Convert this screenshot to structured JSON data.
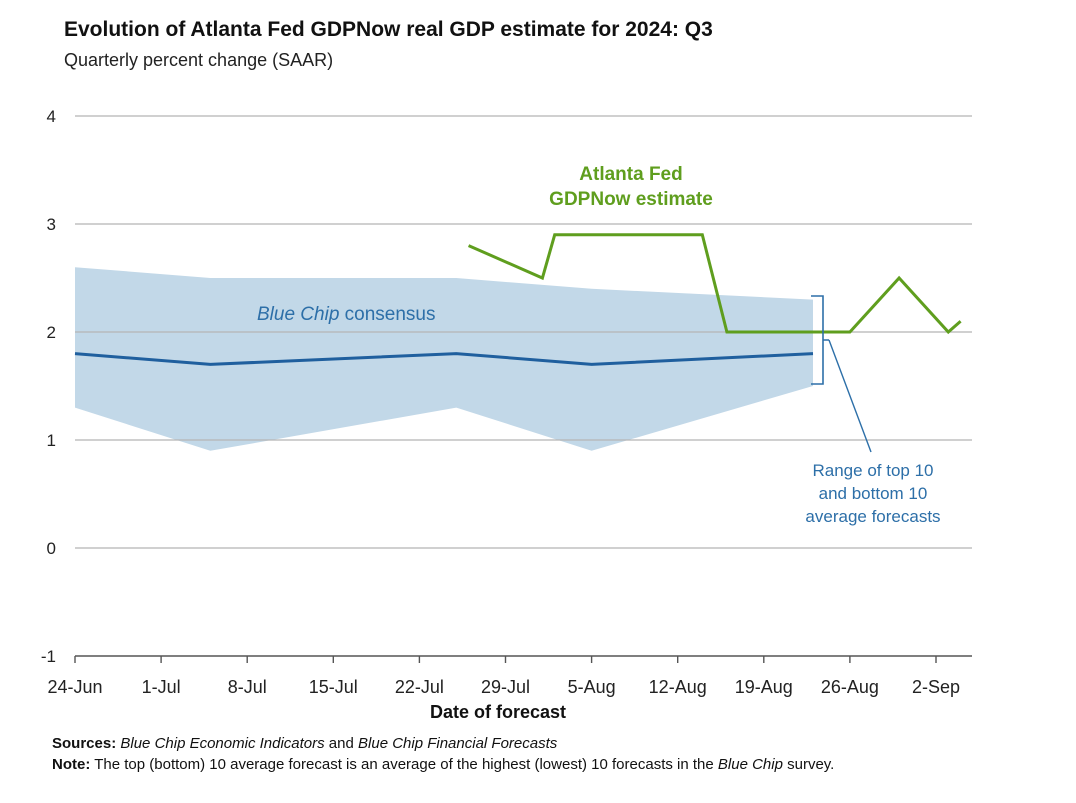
{
  "chart_data": {
    "type": "line",
    "title": "Evolution of Atlanta Fed GDPNow real GDP estimate for 2024: Q3",
    "subtitle": "Quarterly percent change (SAAR)",
    "xlabel": "Date of forecast",
    "ylabel": "",
    "ylim": [
      -1,
      4
    ],
    "y_ticks": [
      4,
      3,
      2,
      1,
      0,
      -1
    ],
    "x_ticks": [
      {
        "label": "24-Jun",
        "day": 0
      },
      {
        "label": "1-Jul",
        "day": 7
      },
      {
        "label": "8-Jul",
        "day": 14
      },
      {
        "label": "15-Jul",
        "day": 21
      },
      {
        "label": "22-Jul",
        "day": 28
      },
      {
        "label": "29-Jul",
        "day": 35
      },
      {
        "label": "5-Aug",
        "day": 42
      },
      {
        "label": "12-Aug",
        "day": 49
      },
      {
        "label": "19-Aug",
        "day": 56
      },
      {
        "label": "26-Aug",
        "day": 63
      },
      {
        "label": "2-Sep",
        "day": 70
      }
    ],
    "x_range_days": [
      0,
      73
    ],
    "grid": true,
    "series": [
      {
        "name": "Atlanta Fed GDPNow estimate",
        "color": "#5f9e1e",
        "points": [
          {
            "day": 32,
            "value": 2.8
          },
          {
            "day": 38,
            "value": 2.5
          },
          {
            "day": 39,
            "value": 2.9
          },
          {
            "day": 51,
            "value": 2.9
          },
          {
            "day": 53,
            "value": 2.0
          },
          {
            "day": 63,
            "value": 2.0
          },
          {
            "day": 67,
            "value": 2.5
          },
          {
            "day": 71,
            "value": 2.0
          },
          {
            "day": 72,
            "value": 2.1
          }
        ]
      },
      {
        "name": "Blue Chip consensus",
        "color": "#1f5f9e",
        "points": [
          {
            "day": 0,
            "value": 1.8
          },
          {
            "day": 11,
            "value": 1.7
          },
          {
            "day": 31,
            "value": 1.8
          },
          {
            "day": 42,
            "value": 1.7
          },
          {
            "day": 60,
            "value": 1.8
          }
        ]
      }
    ],
    "band": {
      "name": "Range of top 10 and bottom 10 average forecasts",
      "color": "#c2d8e8",
      "upper": [
        {
          "day": 0,
          "value": 2.6
        },
        {
          "day": 11,
          "value": 2.5
        },
        {
          "day": 31,
          "value": 2.5
        },
        {
          "day": 42,
          "value": 2.4
        },
        {
          "day": 60,
          "value": 2.3
        }
      ],
      "lower": [
        {
          "day": 0,
          "value": 1.3
        },
        {
          "day": 11,
          "value": 0.9
        },
        {
          "day": 31,
          "value": 1.3
        },
        {
          "day": 42,
          "value": 0.9
        },
        {
          "day": 60,
          "value": 1.5
        }
      ]
    },
    "annotations": {
      "gdpnow_line1": "Atlanta Fed",
      "gdpnow_line2": "GDPNow estimate",
      "bluechip_italic": "Blue Chip",
      "bluechip_rest": " consensus",
      "range_line1": "Range of top 10",
      "range_line2": "and bottom 10",
      "range_line3": "average forecasts"
    }
  },
  "footer": {
    "sources_label": "Sources:",
    "sources_part1": "Blue Chip Economic Indicators",
    "sources_part2": " and ",
    "sources_part3": "Blue Chip Financial Forecasts",
    "note_label": "Note:",
    "note_part1": " The top (bottom) 10 average forecast is an average of the highest (lowest) 10 forecasts in the ",
    "note_part2": "Blue Chip",
    "note_part3": " survey."
  }
}
